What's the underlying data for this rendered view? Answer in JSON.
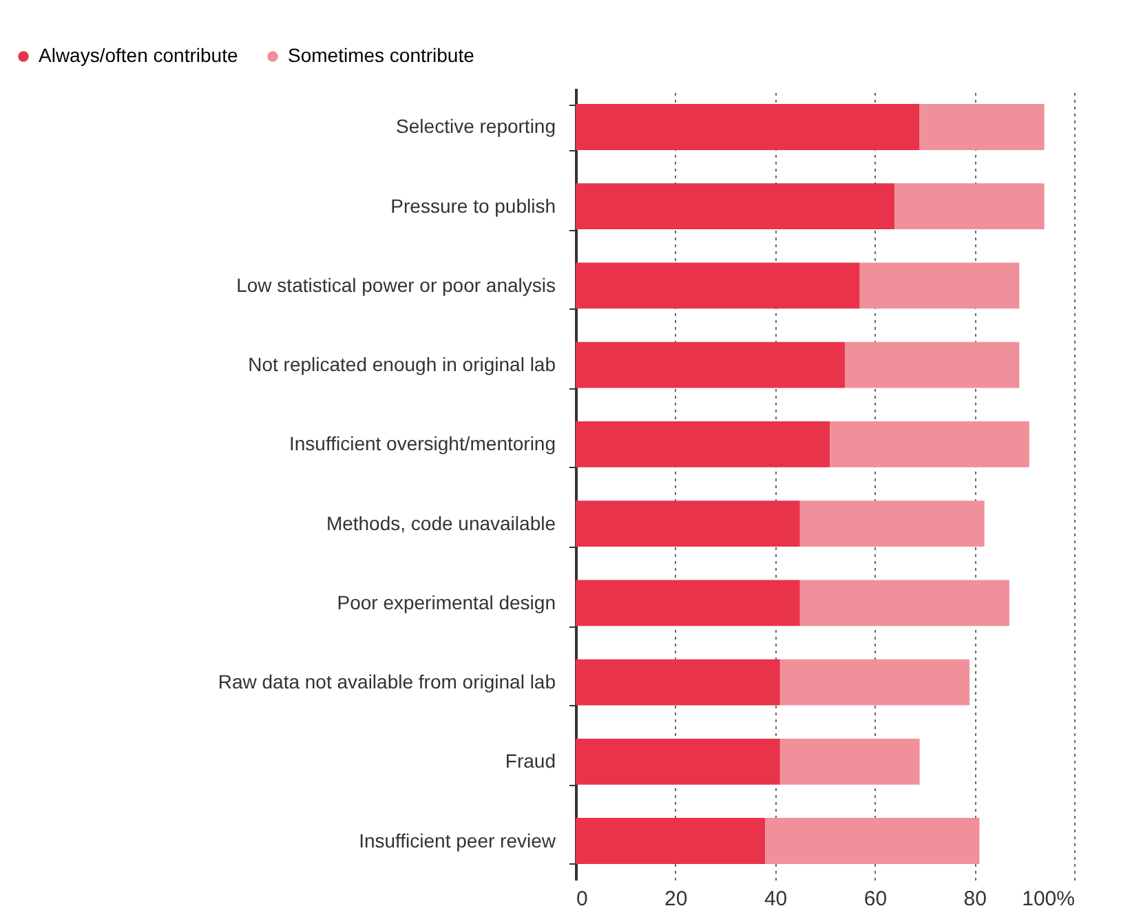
{
  "chart_data": {
    "type": "bar",
    "orientation": "horizontal",
    "stacked": true,
    "categories": [
      "Selective reporting",
      "Pressure to publish",
      "Low statistical power or poor analysis",
      "Not replicated enough in original lab",
      "Insufficient oversight/mentoring",
      "Methods, code unavailable",
      "Poor experimental design",
      "Raw data not available from original lab",
      "Fraud",
      "Insufficient peer review"
    ],
    "series": [
      {
        "name": "Always/often contribute",
        "color": "#e8334a",
        "values": [
          69,
          64,
          57,
          54,
          51,
          45,
          45,
          41,
          41,
          38
        ]
      },
      {
        "name": "Sometimes contribute",
        "color": "#f0909a",
        "values": [
          25,
          30,
          32,
          35,
          40,
          37,
          42,
          38,
          28,
          43
        ]
      }
    ],
    "xlim": [
      0,
      100
    ],
    "xticks": [
      0,
      20,
      40,
      60,
      80,
      {
        "value": 100,
        "label": "100%"
      }
    ],
    "grid": "x",
    "legend": "top left"
  }
}
